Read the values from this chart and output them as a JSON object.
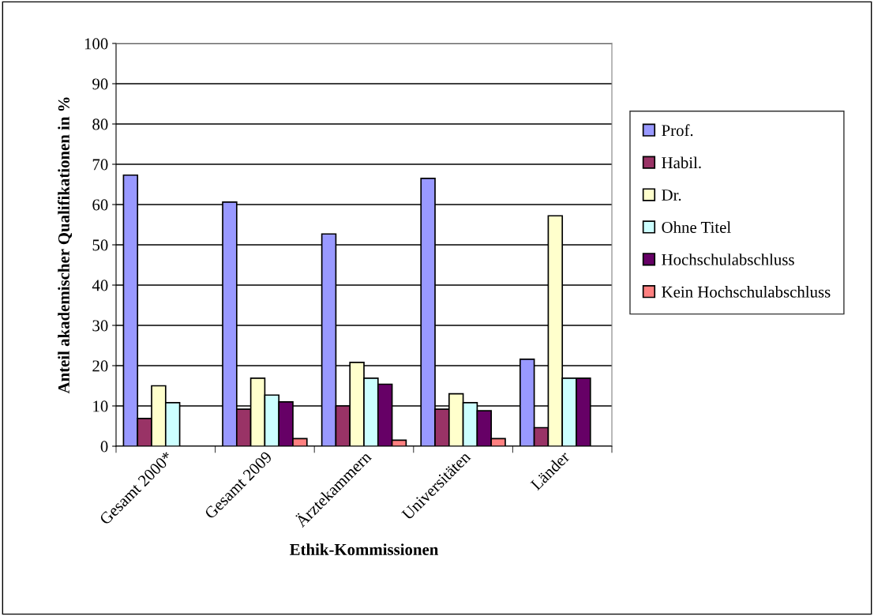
{
  "chart_data": {
    "type": "bar",
    "xlabel": "Ethik-Kommissionen",
    "ylabel": "Anteil akademischer Qualifikationen in %",
    "categories": [
      "Gesamt 2000*",
      "Gesamt 2009",
      "Ärztekammern",
      "Universitäten",
      "Länder"
    ],
    "series": [
      {
        "name": "Prof.",
        "color": "#9999ff",
        "values": [
          67.3,
          60.6,
          52.7,
          66.5,
          21.6
        ]
      },
      {
        "name": "Habil.",
        "color": "#993366",
        "values": [
          6.9,
          9.2,
          10.0,
          9.2,
          4.6
        ]
      },
      {
        "name": "Dr.",
        "color": "#ffffcc",
        "values": [
          15.0,
          16.9,
          20.8,
          13.0,
          57.2
        ]
      },
      {
        "name": "Ohne Titel",
        "color": "#ccffff",
        "values": [
          10.8,
          12.7,
          16.9,
          10.8,
          16.9
        ]
      },
      {
        "name": "Hochschulabschluss",
        "color": "#660066",
        "values": [
          null,
          11.0,
          15.4,
          8.8,
          16.9
        ]
      },
      {
        "name": "Kein Hochschulabschluss",
        "color": "#ff8080",
        "values": [
          null,
          1.9,
          1.5,
          1.9,
          null
        ]
      }
    ],
    "ylim": [
      0,
      100
    ],
    "yticks": [
      0,
      10,
      20,
      30,
      40,
      50,
      60,
      70,
      80,
      90,
      100
    ],
    "grid": "y",
    "legend": "right"
  }
}
